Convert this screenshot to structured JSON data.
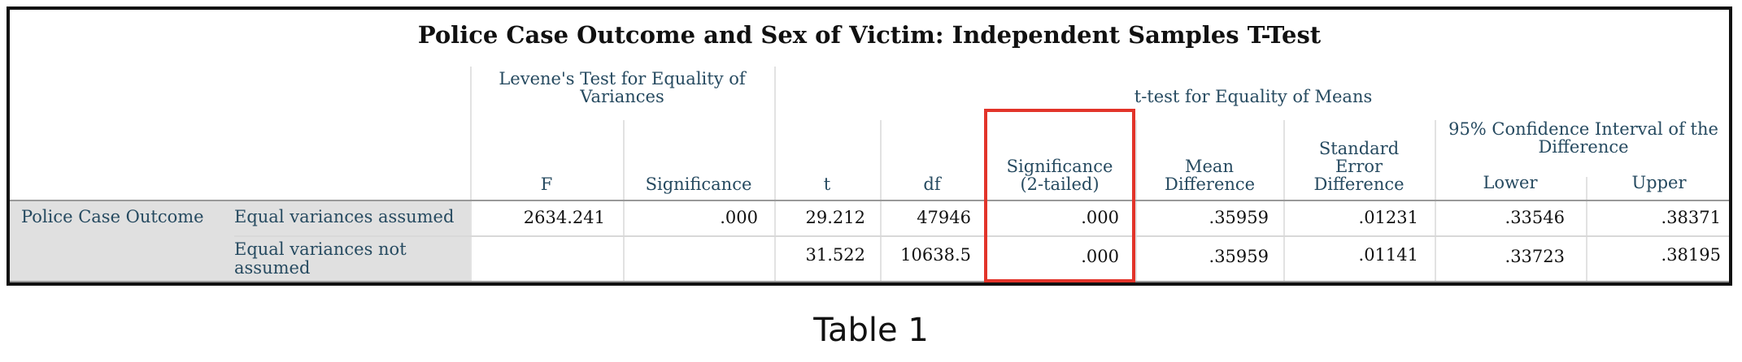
{
  "table": {
    "title": "Police Case Outcome and Sex of Victim: Independent Samples T-Test",
    "levene_header": "Levene's Test for Equality of Variances",
    "ttest_header": "t-test for Equality of Means",
    "ci_header": "95% Confidence Interval of the Difference",
    "columns": {
      "f": "F",
      "lev_sig": "Significance",
      "t": "t",
      "df": "df",
      "sig2": "Significance (2-tailed)",
      "mean_diff": "Mean Difference",
      "se_diff": "Standard Error Difference",
      "lower": "Lower",
      "upper": "Upper"
    },
    "row_group_label": "Police Case Outcome",
    "rows": [
      {
        "label": "Equal variances assumed",
        "f": "2634.241",
        "lev_sig": ".000",
        "t": "29.212",
        "df": "47946",
        "sig2": ".000",
        "mean_diff": ".35959",
        "se_diff": ".01231",
        "lower": ".33546",
        "upper": ".38371"
      },
      {
        "label": "Equal variances not assumed",
        "f": "",
        "lev_sig": "",
        "t": "31.522",
        "df": "10638.5",
        "sig2": ".000",
        "mean_diff": ".35959",
        "se_diff": ".01141",
        "lower": ".33723",
        "upper": ".38195"
      }
    ],
    "highlight_color": "#e2342a",
    "header_text_color": "#264a60"
  },
  "caption": "Table 1"
}
